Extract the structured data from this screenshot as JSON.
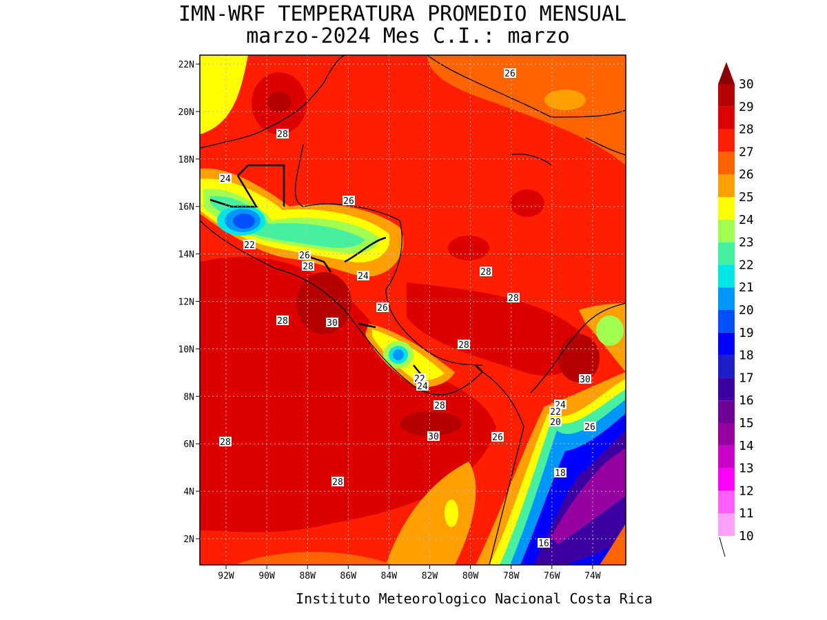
{
  "title": [
    "IMN-WRF  TEMPERATURA PROMEDIO MENSUAL",
    "marzo-2024 Mes C.I.: marzo"
  ],
  "map": {
    "lat_ticks": [
      "22N",
      "20N",
      "18N",
      "16N",
      "14N",
      "12N",
      "10N",
      "8N",
      "6N",
      "4N",
      "2N"
    ],
    "lon_ticks": [
      "92W",
      "90W",
      "88W",
      "86W",
      "84W",
      "82W",
      "80W",
      "78W",
      "76W",
      "74W"
    ],
    "contour_labels": [
      "26",
      "28",
      "24",
      "26",
      "22",
      "26",
      "28",
      "24",
      "28",
      "28",
      "26",
      "28",
      "30",
      "28",
      "30",
      "22",
      "24",
      "28",
      "24",
      "22",
      "20",
      "26",
      "30",
      "26",
      "28",
      "18",
      "28",
      "16"
    ]
  },
  "colorbar": {
    "levels": [
      10,
      11,
      12,
      13,
      14,
      15,
      16,
      17,
      18,
      19,
      20,
      21,
      22,
      23,
      24,
      25,
      26,
      27,
      28,
      29,
      30
    ],
    "colors": [
      "#ffa0ff",
      "#ff60ff",
      "#ff00ff",
      "#c800c8",
      "#9600a0",
      "#6e0096",
      "#3c00a0",
      "#1e1ec8",
      "#0000ff",
      "#0050ff",
      "#0096ff",
      "#00e6e6",
      "#46f0a0",
      "#a0ff50",
      "#ffff00",
      "#ffa000",
      "#ff6400",
      "#ff1e00",
      "#dc0000",
      "#b40000",
      "#8c0000"
    ]
  },
  "footer": "Instituto Meteorologico Nacional Costa Rica"
}
